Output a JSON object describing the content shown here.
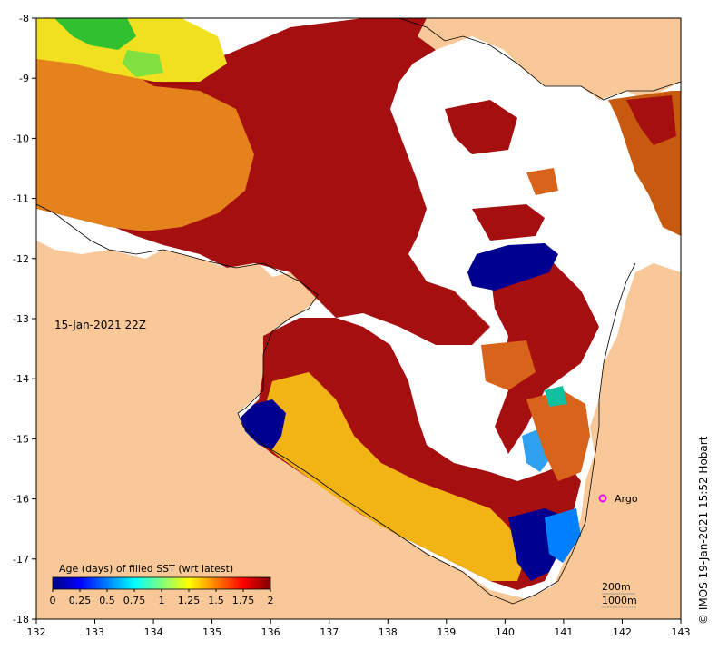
{
  "map": {
    "date_label": "15-Jan-2021 22Z",
    "credit": "© IMOS 19-Jan-2021 15:52 Hobart",
    "lon_ticks": [
      "132",
      "133",
      "134",
      "135",
      "136",
      "137",
      "138",
      "139",
      "140",
      "141",
      "142",
      "143"
    ],
    "lat_ticks": [
      "-8",
      "-9",
      "-10",
      "-11",
      "-12",
      "-13",
      "-14",
      "-15",
      "-16",
      "-17",
      "-18"
    ],
    "marker": {
      "label": "Argo",
      "lon": 141.7,
      "lat": -16.0,
      "color": "#ff00ff"
    },
    "contour_labels": [
      "200m",
      "1000m"
    ],
    "land_color": "#f8c898",
    "ocean_nodata_color": "#ffffff"
  },
  "colorbar": {
    "title": "Age (days) of filled SST (wrt latest)",
    "tick_labels": [
      "0",
      "0.25",
      "0.5",
      "0.75",
      "1",
      "1.25",
      "1.5",
      "1.75",
      "2"
    ],
    "colors": [
      "#00007f",
      "#0000ff",
      "#007fff",
      "#00ffff",
      "#7fff7f",
      "#ffff00",
      "#ff7f00",
      "#ff0000",
      "#7f0000"
    ]
  }
}
